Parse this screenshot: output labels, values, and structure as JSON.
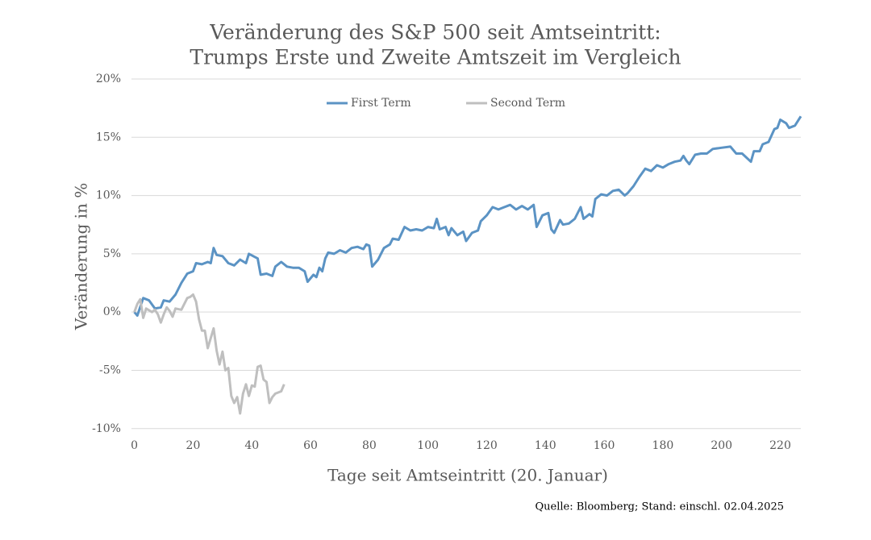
{
  "chart_data": {
    "type": "line",
    "title": [
      "Veränderung des S&P 500 seit Amtseintritt:",
      "Trumps Erste und Zweite Amtszeit im Vergleich"
    ],
    "xlabel": "Tage seit Amtseintritt (20. Januar)",
    "ylabel": "Veränderung in %",
    "source": "Quelle: Bloomberg; Stand: einschl. 02.04.2025",
    "xlim": [
      -1,
      227
    ],
    "xticks": [
      0,
      20,
      40,
      60,
      80,
      100,
      120,
      140,
      160,
      180,
      200,
      220
    ],
    "ylim": [
      -10.5,
      20
    ],
    "yticks": [
      {
        "value": -10,
        "label": "-10%"
      },
      {
        "value": -5,
        "label": "-5%"
      },
      {
        "value": 0,
        "label": "0%"
      },
      {
        "value": 5,
        "label": "5%"
      },
      {
        "value": 10,
        "label": "10%"
      },
      {
        "value": 15,
        "label": "15%"
      },
      {
        "value": 20,
        "label": "20%"
      }
    ],
    "grid": true,
    "legend": "top",
    "series": [
      {
        "name": "First Term",
        "color": "#5b93c4",
        "x": [
          0,
          1,
          3,
          5,
          7,
          9,
          10,
          12,
          14,
          16,
          18,
          20,
          21,
          23,
          25,
          26,
          27,
          28,
          30,
          32,
          34,
          36,
          38,
          39,
          42,
          43,
          45,
          47,
          48,
          50,
          52,
          54,
          56,
          58,
          59,
          61,
          62,
          63,
          64,
          65,
          66,
          68,
          70,
          72,
          74,
          76,
          78,
          79,
          80,
          81,
          83,
          85,
          87,
          88,
          90,
          92,
          94,
          96,
          98,
          100,
          102,
          103,
          104,
          106,
          107,
          108,
          110,
          112,
          113,
          115,
          117,
          118,
          120,
          122,
          124,
          126,
          128,
          130,
          132,
          134,
          136,
          137,
          139,
          141,
          142,
          143,
          145,
          146,
          148,
          150,
          152,
          153,
          155,
          156,
          157,
          159,
          161,
          163,
          165,
          167,
          168,
          170,
          172,
          174,
          176,
          178,
          180,
          182,
          184,
          186,
          187,
          188,
          189,
          191,
          193,
          195,
          197,
          200,
          203,
          205,
          207,
          210,
          211,
          213,
          214,
          216,
          218,
          219,
          220,
          222,
          223,
          225,
          227
        ],
        "values": [
          0,
          -0.3,
          1.2,
          1.0,
          0.3,
          0.4,
          1.0,
          0.9,
          1.5,
          2.5,
          3.3,
          3.5,
          4.2,
          4.1,
          4.3,
          4.2,
          5.5,
          4.9,
          4.8,
          4.2,
          4.0,
          4.5,
          4.2,
          5.0,
          4.6,
          3.2,
          3.3,
          3.1,
          3.9,
          4.3,
          3.9,
          3.8,
          3.8,
          3.5,
          2.6,
          3.2,
          3.0,
          3.8,
          3.5,
          4.6,
          5.1,
          5.0,
          5.3,
          5.1,
          5.5,
          5.6,
          5.4,
          5.8,
          5.7,
          3.9,
          4.5,
          5.5,
          5.8,
          6.3,
          6.2,
          7.3,
          7.0,
          7.1,
          7.0,
          7.3,
          7.2,
          8.0,
          7.1,
          7.3,
          6.6,
          7.2,
          6.6,
          6.9,
          6.1,
          6.8,
          7.0,
          7.8,
          8.3,
          9.0,
          8.8,
          9.0,
          9.2,
          8.8,
          9.1,
          8.8,
          9.2,
          7.3,
          8.3,
          8.5,
          7.1,
          6.8,
          7.9,
          7.5,
          7.6,
          8.0,
          9.0,
          8.0,
          8.4,
          8.2,
          9.7,
          10.1,
          10.0,
          10.4,
          10.5,
          10.0,
          10.2,
          10.8,
          11.6,
          12.3,
          12.1,
          12.6,
          12.4,
          12.7,
          12.9,
          13.0,
          13.4,
          13.0,
          12.7,
          13.5,
          13.6,
          13.6,
          14.0,
          14.1,
          14.2,
          13.6,
          13.6,
          12.9,
          13.8,
          13.8,
          14.4,
          14.6,
          15.7,
          15.8,
          16.5,
          16.2,
          15.8,
          16.0,
          16.8
        ]
      },
      {
        "name": "Second Term",
        "color": "#bfbfbf",
        "x": [
          0,
          1,
          2,
          3,
          4,
          6,
          7,
          8,
          9,
          10,
          11,
          12,
          13,
          14,
          16,
          18,
          19,
          20,
          21,
          22,
          23,
          24,
          25,
          27,
          28,
          29,
          30,
          31,
          32,
          33,
          34,
          35,
          36,
          37,
          38,
          39,
          40,
          41,
          42,
          43,
          44,
          45,
          46,
          47,
          48,
          50,
          51
        ],
        "values": [
          0,
          0.7,
          1.1,
          -0.5,
          0.3,
          0,
          0.2,
          -0.2,
          -0.9,
          -0.2,
          0.4,
          0.1,
          -0.4,
          0.3,
          0.2,
          1.2,
          1.3,
          1.5,
          0.9,
          -0.6,
          -1.6,
          -1.6,
          -3.1,
          -1.4,
          -3.3,
          -4.5,
          -3.4,
          -5.0,
          -4.8,
          -7.2,
          -7.8,
          -7.3,
          -8.7,
          -7.0,
          -6.2,
          -7.2,
          -6.3,
          -6.4,
          -4.7,
          -4.6,
          -5.8,
          -6.0,
          -7.8,
          -7.3,
          -7.0,
          -6.8,
          -6.2
        ]
      }
    ]
  }
}
